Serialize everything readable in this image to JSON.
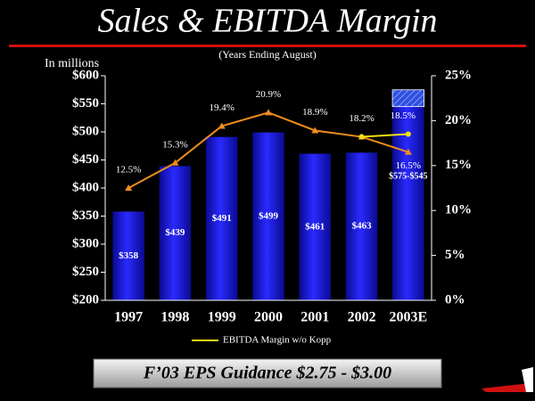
{
  "chart_data": {
    "type": "bar",
    "title": "Sales & EBITDA Margin",
    "subtitle": "(Years Ending August)",
    "y_label": "In millions",
    "footer": "F’03 EPS Guidance $2.75 - $3.00",
    "categories": [
      "1997",
      "1998",
      "1999",
      "2000",
      "2001",
      "2002",
      "2003E"
    ],
    "values": [
      358,
      439,
      491,
      499,
      461,
      463,
      575
    ],
    "value_lows": [
      null,
      null,
      null,
      null,
      null,
      null,
      545
    ],
    "value_labels": [
      "$358",
      "$439",
      "$491",
      "$499",
      "$461",
      "$463",
      "$575-$545"
    ],
    "color": "#1414d8",
    "ylim": [
      200,
      600
    ],
    "yticks": [
      {
        "value": 200,
        "label": "$200"
      },
      {
        "value": 250,
        "label": "$250"
      },
      {
        "value": 300,
        "label": "$300"
      },
      {
        "value": 350,
        "label": "$350"
      },
      {
        "value": 400,
        "label": "$400"
      },
      {
        "value": 450,
        "label": "$450"
      },
      {
        "value": 500,
        "label": "$500"
      },
      {
        "value": 550,
        "label": "$550"
      },
      {
        "value": 600,
        "label": "$600"
      }
    ],
    "y2lim": [
      0,
      25
    ],
    "y2ticks": [
      {
        "value": 0,
        "label": "0%"
      },
      {
        "value": 5,
        "label": "5%"
      },
      {
        "value": 10,
        "label": "10%"
      },
      {
        "value": 15,
        "label": "15%"
      },
      {
        "value": 20,
        "label": "20%"
      },
      {
        "value": 25,
        "label": "25%"
      }
    ],
    "series": [
      {
        "color": "#f08c1e",
        "axis": "y2",
        "values": [
          12.5,
          15.3,
          19.4,
          20.9,
          18.9,
          18.2,
          16.5
        ],
        "value_labels": [
          "12.5%",
          "15.3%",
          "19.4%",
          "20.9%",
          "18.9%",
          "18.2%",
          "16.5%"
        ]
      },
      {
        "name": "EBITDA Margin w/o Kopp",
        "color": "#f0e010",
        "axis": "y2",
        "values": [
          null,
          null,
          null,
          null,
          null,
          18.2,
          18.5
        ],
        "value_labels": [
          null,
          null,
          null,
          null,
          null,
          null,
          "18.5%"
        ]
      }
    ]
  }
}
